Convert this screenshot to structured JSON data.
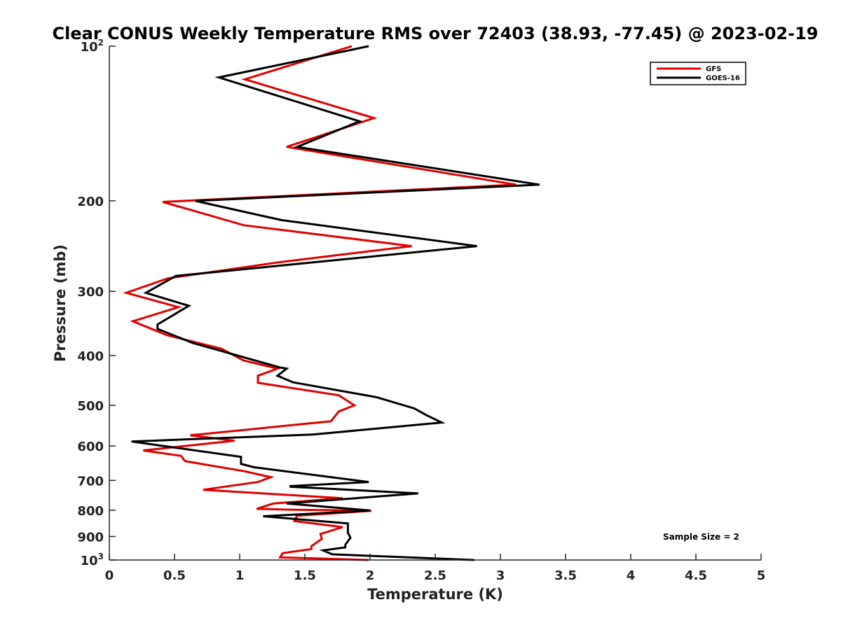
{
  "chart_data": {
    "type": "line",
    "title": "Clear CONUS Weekly Temperature RMS over 72403 (38.93, -77.45) @ 2023-02-19",
    "xlabel": "Temperature (K)",
    "ylabel": "Pressure (mb)",
    "xlim": [
      0,
      5
    ],
    "ylim": [
      100,
      1000
    ],
    "y_scale": "log",
    "y_reversed": true,
    "x_ticks": [
      "0",
      "0.5",
      "1",
      "1.5",
      "2",
      "2.5",
      "3",
      "3.5",
      "4",
      "4.5",
      "5"
    ],
    "y_ticks": [
      {
        "value": 100,
        "base": "10",
        "exp": "2"
      },
      {
        "value": 200,
        "label": "200"
      },
      {
        "value": 300,
        "label": "300"
      },
      {
        "value": 400,
        "label": "400"
      },
      {
        "value": 500,
        "label": "500"
      },
      {
        "value": 600,
        "label": "600"
      },
      {
        "value": 700,
        "label": "700"
      },
      {
        "value": 800,
        "label": "800"
      },
      {
        "value": 900,
        "label": "900"
      },
      {
        "value": 1000,
        "base": "10",
        "exp": "3"
      }
    ],
    "grid": false,
    "legend_position": "top-right",
    "annotation": "Sample Size = 2",
    "series": [
      {
        "name": "GFS",
        "color": "#e00000",
        "points": [
          [
            1.86,
            100
          ],
          [
            1.04,
            116
          ],
          [
            2.03,
            138
          ],
          [
            1.36,
            157
          ],
          [
            3.12,
            186
          ],
          [
            0.41,
            201
          ],
          [
            1.03,
            223
          ],
          [
            2.32,
            245
          ],
          [
            1.32,
            263
          ],
          [
            0.45,
            283
          ],
          [
            0.13,
            302
          ],
          [
            0.53,
            322
          ],
          [
            0.18,
            343
          ],
          [
            0.44,
            365
          ],
          [
            0.86,
            388
          ],
          [
            1.03,
            409
          ],
          [
            1.29,
            424
          ],
          [
            1.14,
            438
          ],
          [
            1.14,
            452
          ],
          [
            1.76,
            478
          ],
          [
            1.88,
            500
          ],
          [
            1.76,
            514
          ],
          [
            1.7,
            537
          ],
          [
            0.62,
            572
          ],
          [
            0.96,
            586
          ],
          [
            0.26,
            612
          ],
          [
            0.55,
            627
          ],
          [
            0.58,
            642
          ],
          [
            1.04,
            672
          ],
          [
            1.24,
            690
          ],
          [
            1.14,
            705
          ],
          [
            0.72,
            730
          ],
          [
            1.79,
            758
          ],
          [
            1.26,
            776
          ],
          [
            1.13,
            795
          ],
          [
            1.39,
            798
          ],
          [
            2.01,
            802
          ],
          [
            1.44,
            820
          ],
          [
            1.42,
            840
          ],
          [
            1.79,
            863
          ],
          [
            1.62,
            890
          ],
          [
            1.63,
            910
          ],
          [
            1.55,
            940
          ],
          [
            1.55,
            952
          ],
          [
            1.33,
            970
          ],
          [
            1.31,
            988
          ],
          [
            1.99,
            1000
          ]
        ]
      },
      {
        "name": "GOES-16",
        "color": "#000000",
        "points": [
          [
            1.99,
            100
          ],
          [
            0.84,
            115
          ],
          [
            1.92,
            140
          ],
          [
            1.44,
            157
          ],
          [
            3.3,
            186
          ],
          [
            0.66,
            200
          ],
          [
            1.32,
            218
          ],
          [
            2.82,
            245
          ],
          [
            0.51,
            280
          ],
          [
            0.28,
            302
          ],
          [
            0.61,
            320
          ],
          [
            0.37,
            348
          ],
          [
            0.37,
            355
          ],
          [
            0.64,
            378
          ],
          [
            1.31,
            422
          ],
          [
            1.36,
            424
          ],
          [
            1.29,
            438
          ],
          [
            1.41,
            451
          ],
          [
            2.05,
            482
          ],
          [
            2.34,
            507
          ],
          [
            2.43,
            522
          ],
          [
            2.55,
            540
          ],
          [
            1.56,
            570
          ],
          [
            0.17,
            588
          ],
          [
            1.01,
            630
          ],
          [
            1.01,
            650
          ],
          [
            1.11,
            660
          ],
          [
            1.99,
            705
          ],
          [
            1.39,
            718
          ],
          [
            1.39,
            720
          ],
          [
            2.37,
            742
          ],
          [
            1.36,
            776
          ],
          [
            2.0,
            801
          ],
          [
            1.18,
            822
          ],
          [
            1.83,
            849
          ],
          [
            1.83,
            885
          ],
          [
            1.85,
            905
          ],
          [
            1.81,
            934
          ],
          [
            1.81,
            945
          ],
          [
            1.64,
            958
          ],
          [
            1.71,
            975
          ],
          [
            2.8,
            1000
          ]
        ]
      }
    ]
  }
}
